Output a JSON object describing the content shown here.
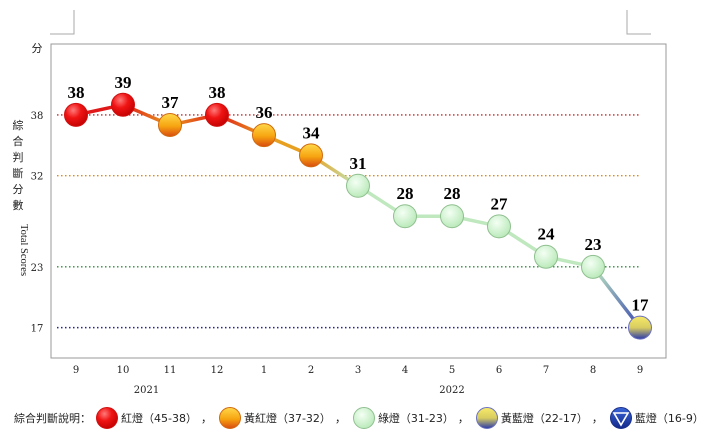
{
  "chart_data": {
    "type": "line",
    "unit_label": "分",
    "ylabel_cn": "綜合判斷分數",
    "ylabel_en": "Total Scores",
    "ylim": [
      14,
      45
    ],
    "yticks": [
      17,
      23,
      32,
      38
    ],
    "thresholds": [
      {
        "value": 38,
        "color": "#cc2222"
      },
      {
        "value": 32,
        "color": "#d88820"
      },
      {
        "value": 23,
        "color": "#2e8b3a"
      },
      {
        "value": 17,
        "color": "#22228f"
      }
    ],
    "categories": [
      "9",
      "10",
      "11",
      "12",
      "1",
      "2",
      "3",
      "4",
      "5",
      "6",
      "7",
      "8",
      "9"
    ],
    "values": [
      38,
      39,
      37,
      38,
      36,
      34,
      31,
      28,
      28,
      27,
      24,
      23,
      17
    ],
    "signals": [
      "red",
      "red",
      "yellow-red",
      "red",
      "yellow-red",
      "yellow-red",
      "green",
      "green",
      "green",
      "green",
      "green",
      "green",
      "yellow-blue"
    ],
    "years": [
      {
        "label": "2021",
        "start": 0,
        "end": 3
      },
      {
        "label": "2022",
        "start": 4,
        "end": 12
      }
    ]
  },
  "legend": {
    "title": "綜合判斷說明：",
    "separator": "，",
    "items": [
      {
        "key": "red",
        "label": "紅燈（45-38）"
      },
      {
        "key": "yellow-red",
        "label": "黃紅燈（37-32）"
      },
      {
        "key": "green",
        "label": "綠燈（31-23）"
      },
      {
        "key": "yellow-blue",
        "label": "黃藍燈（22-17）"
      },
      {
        "key": "blue",
        "label": "藍燈（16-9）"
      }
    ]
  },
  "colors": {
    "red": "#ee1111",
    "yellow-red": "#f5a000",
    "green": "#c8f0c8",
    "yellow-blue": "#e8d84a",
    "blue": "#1a3fb0",
    "frame": "#999999"
  }
}
